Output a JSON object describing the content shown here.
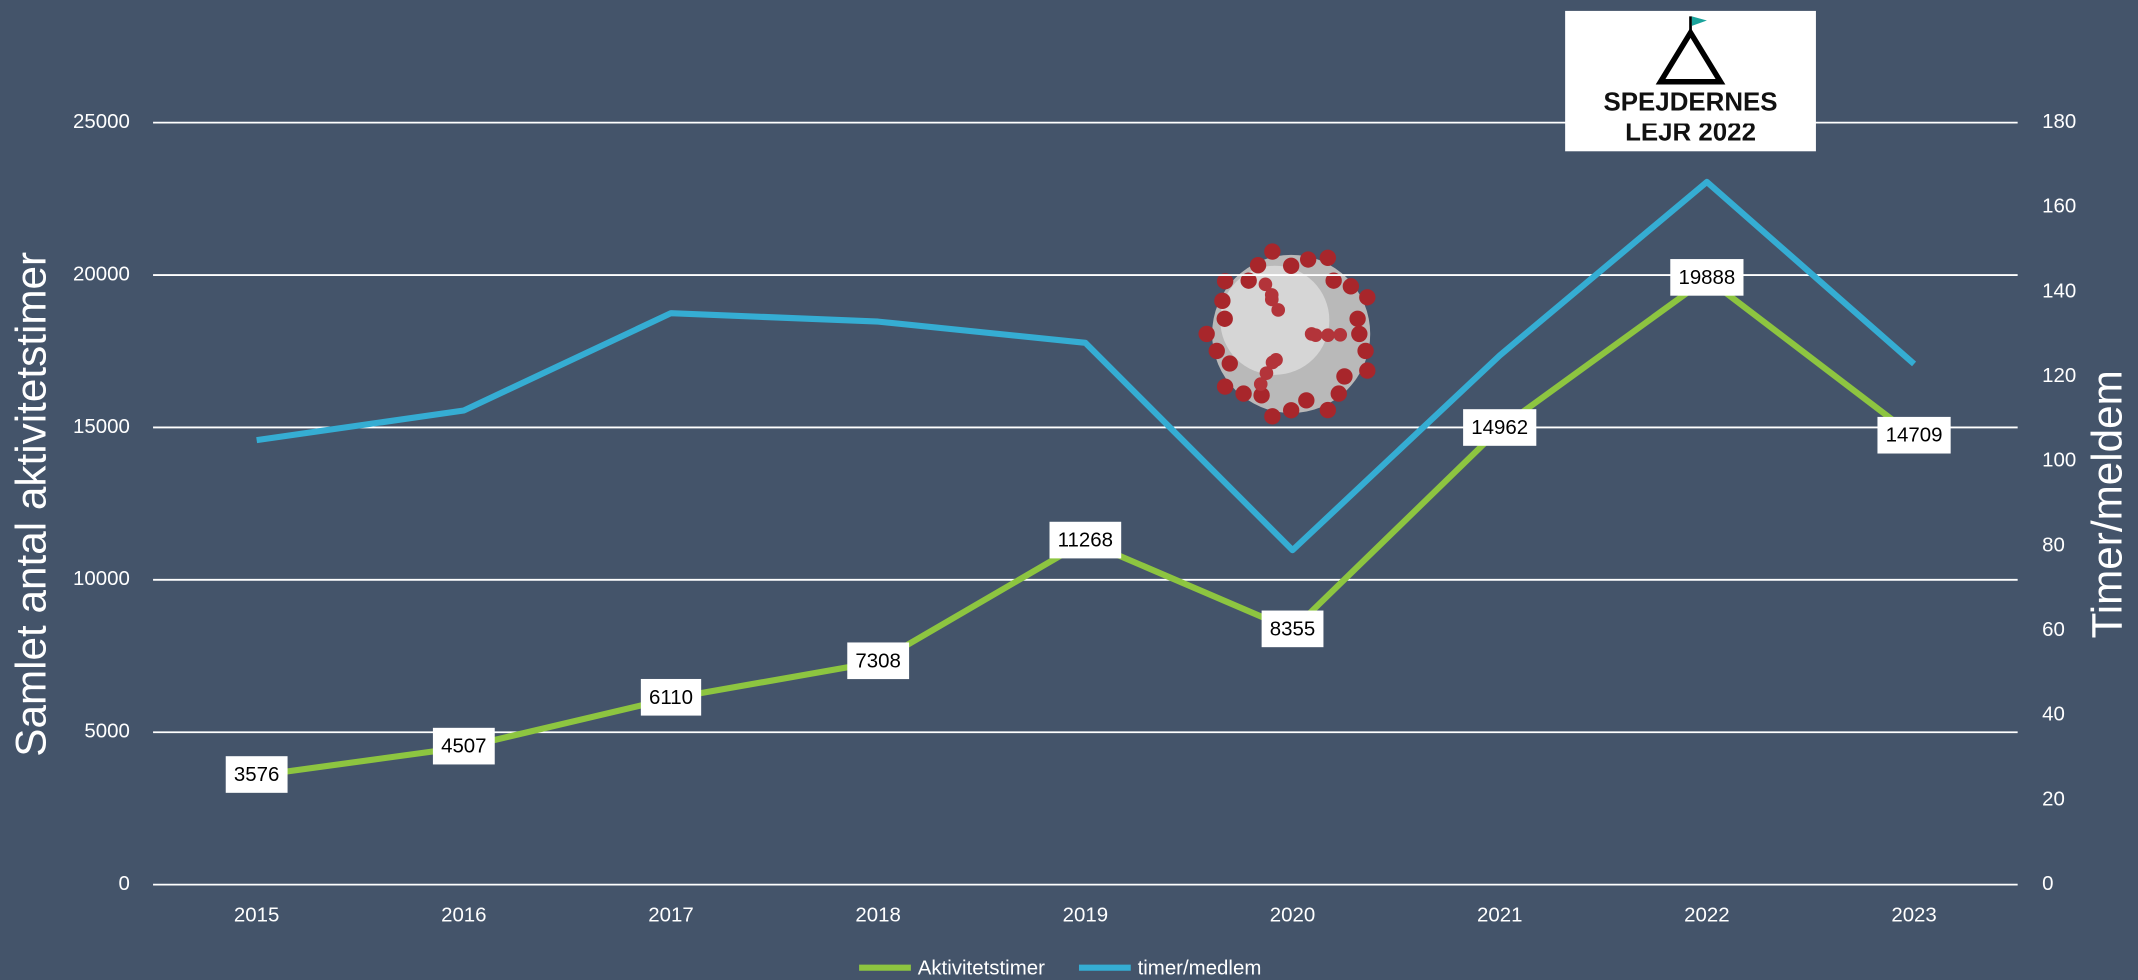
{
  "chart_data": {
    "type": "line",
    "y_label": "Samlet antal aktivitetstimer",
    "y2_label": "Timer/meldem",
    "categories": [
      "2015",
      "2016",
      "2017",
      "2018",
      "2019",
      "2020",
      "2021",
      "2022",
      "2023"
    ],
    "series": [
      {
        "name": "Aktivitetstimer",
        "color": "#8dc540",
        "values": [
          3576,
          4507,
          6110,
          7308,
          11268,
          8355,
          14962,
          19888,
          14709
        ],
        "data_labels": true
      },
      {
        "name": "timer/medlem",
        "color": "#35add3",
        "axis": "y2",
        "values": [
          105,
          112,
          135,
          133,
          128,
          79,
          125,
          166,
          123
        ]
      }
    ],
    "ylim": [
      0,
      25000
    ],
    "yticks": [
      0,
      5000,
      10000,
      15000,
      20000,
      25000
    ],
    "y2lim": [
      0,
      180
    ],
    "y2ticks": [
      0,
      20,
      40,
      60,
      80,
      100,
      120,
      140,
      160,
      180
    ],
    "grid": true,
    "legend": "bottom",
    "logo_text": [
      "SPEJDERNES",
      "LEJR 2022"
    ]
  }
}
